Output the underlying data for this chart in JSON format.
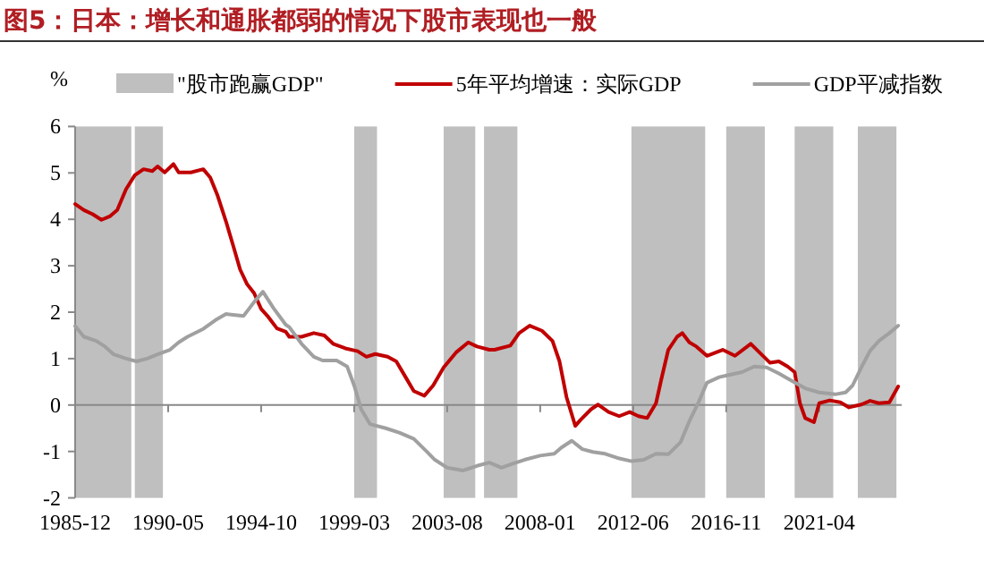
{
  "chart_data": {
    "type": "line",
    "title": "图5：日本：增长和通胀都弱的情况下股市表现也一般",
    "ylabel": "%",
    "xlim": [
      "1985-12",
      "2025-03"
    ],
    "xticks": [
      {
        "value": "1985-12",
        "label": "1985-12"
      },
      {
        "value": "1990-05",
        "label": "1990-05"
      },
      {
        "value": "1994-10",
        "label": "1994-10"
      },
      {
        "value": "1999-03",
        "label": "1999-03"
      },
      {
        "value": "2003-08",
        "label": "2003-08"
      },
      {
        "value": "2008-01",
        "label": "2008-01"
      },
      {
        "value": "2012-06",
        "label": "2012-06"
      },
      {
        "value": "2016-11",
        "label": "2016-11"
      },
      {
        "value": "2021-04",
        "label": "2021-04"
      }
    ],
    "ylim": [
      -2,
      6
    ],
    "yticks": [
      -2,
      -1,
      0,
      1,
      2,
      3,
      4,
      5,
      6
    ],
    "legend": "top",
    "bands": [
      {
        "axis": "x",
        "from": "1985-12",
        "to": "1988-08",
        "label": "\"股市跑赢GDP\"",
        "color": "#bfbfbf"
      },
      {
        "axis": "x",
        "from": "1988-10",
        "to": "1990-02",
        "color": "#bfbfbf"
      },
      {
        "axis": "x",
        "from": "1999-03",
        "to": "2000-04",
        "color": "#bfbfbf"
      },
      {
        "axis": "x",
        "from": "2003-06",
        "to": "2004-12",
        "color": "#bfbfbf"
      },
      {
        "axis": "x",
        "from": "2005-05",
        "to": "2006-12",
        "color": "#bfbfbf"
      },
      {
        "axis": "x",
        "from": "2012-05",
        "to": "2015-11",
        "color": "#bfbfbf"
      },
      {
        "axis": "x",
        "from": "2016-11",
        "to": "2018-09",
        "color": "#bfbfbf"
      },
      {
        "axis": "x",
        "from": "2020-02",
        "to": "2021-12",
        "color": "#bfbfbf"
      },
      {
        "axis": "x",
        "from": "2023-02",
        "to": "2024-12",
        "color": "#bfbfbf"
      }
    ],
    "series": [
      {
        "name": "5年平均增速：实际GDP",
        "color": "#c00000",
        "x": [
          "1985-12",
          "1986-05",
          "1986-10",
          "1987-03",
          "1987-08",
          "1987-12",
          "1988-05",
          "1988-10",
          "1989-03",
          "1989-08",
          "1989-11",
          "1990-03",
          "1990-08",
          "1990-11",
          "1991-06",
          "1992-01",
          "1992-05",
          "1992-09",
          "1993-02",
          "1993-06",
          "1993-10",
          "1994-02",
          "1994-06",
          "1994-10",
          "1995-02",
          "1995-07",
          "1995-12",
          "1996-02",
          "1996-09",
          "1997-04",
          "1997-10",
          "1998-03",
          "1998-10",
          "1999-05",
          "1999-10",
          "2000-03",
          "2000-10",
          "2001-03",
          "2001-08",
          "2002-01",
          "2002-07",
          "2002-12",
          "2003-06",
          "2004-01",
          "2004-08",
          "2005-01",
          "2005-08",
          "2005-11",
          "2006-08",
          "2007-01",
          "2007-07",
          "2008-02",
          "2008-08",
          "2008-12",
          "2009-04",
          "2009-09",
          "2009-12",
          "2010-06",
          "2010-10",
          "2011-04",
          "2011-10",
          "2012-04",
          "2012-09",
          "2013-02",
          "2013-07",
          "2013-10",
          "2014-02",
          "2014-07",
          "2014-10",
          "2015-02",
          "2015-06",
          "2015-12",
          "2016-09",
          "2017-04",
          "2018-01",
          "2018-06",
          "2018-12",
          "2019-05",
          "2019-10",
          "2020-02",
          "2020-05",
          "2020-08",
          "2021-01",
          "2021-04",
          "2021-10",
          "2022-04",
          "2022-09",
          "2023-04",
          "2023-09",
          "2024-02",
          "2024-08",
          "2025-01"
        ],
        "values": [
          4.33,
          4.2,
          4.11,
          3.99,
          4.07,
          4.2,
          4.65,
          4.95,
          5.08,
          5.04,
          5.14,
          5.01,
          5.19,
          5.01,
          5.01,
          5.08,
          4.9,
          4.53,
          3.95,
          3.44,
          2.92,
          2.6,
          2.41,
          2.07,
          1.9,
          1.65,
          1.58,
          1.47,
          1.47,
          1.55,
          1.5,
          1.32,
          1.22,
          1.16,
          1.04,
          1.1,
          1.04,
          0.94,
          0.62,
          0.3,
          0.2,
          0.42,
          0.81,
          1.13,
          1.35,
          1.26,
          1.19,
          1.19,
          1.28,
          1.55,
          1.71,
          1.6,
          1.38,
          0.94,
          0.17,
          -0.45,
          -0.32,
          -0.09,
          0.01,
          -0.15,
          -0.24,
          -0.15,
          -0.24,
          -0.28,
          0.04,
          0.55,
          1.19,
          1.47,
          1.55,
          1.35,
          1.26,
          1.06,
          1.19,
          1.06,
          1.32,
          1.13,
          0.91,
          0.94,
          0.83,
          0.71,
          0.04,
          -0.28,
          -0.37,
          0.04,
          0.1,
          0.06,
          -0.05,
          0.01,
          0.09,
          0.04,
          0.06,
          0.4
        ]
      },
      {
        "name": "GDP平减指数",
        "color": "#a0a0a0",
        "x": [
          "1985-12",
          "1986-05",
          "1986-12",
          "1987-05",
          "1987-10",
          "1988-05",
          "1988-11",
          "1989-05",
          "1989-11",
          "1990-06",
          "1990-11",
          "1991-04",
          "1992-01",
          "1992-08",
          "1993-02",
          "1993-12",
          "1994-06",
          "1994-11",
          "1995-05",
          "1995-12",
          "1996-02",
          "1996-09",
          "1997-04",
          "1997-09",
          "1998-05",
          "1998-11",
          "1999-03",
          "1999-07",
          "1999-12",
          "2000-09",
          "2001-05",
          "2002-01",
          "2002-08",
          "2003-01",
          "2003-08",
          "2004-05",
          "2005-01",
          "2005-08",
          "2006-03",
          "2006-09",
          "2007-04",
          "2008-01",
          "2008-09",
          "2009-01",
          "2009-07",
          "2010-01",
          "2010-07",
          "2011-02",
          "2011-09",
          "2012-05",
          "2012-12",
          "2013-07",
          "2014-02",
          "2014-09",
          "2015-02",
          "2015-07",
          "2015-12",
          "2016-07",
          "2017-01",
          "2017-08",
          "2018-03",
          "2018-10",
          "2019-05",
          "2019-11",
          "2020-08",
          "2021-04",
          "2022-01",
          "2022-07",
          "2022-11",
          "2023-04",
          "2023-09",
          "2024-02",
          "2024-08",
          "2025-01"
        ],
        "values": [
          1.7,
          1.47,
          1.38,
          1.26,
          1.09,
          1.0,
          0.94,
          1.0,
          1.09,
          1.19,
          1.35,
          1.47,
          1.64,
          1.83,
          1.96,
          1.92,
          2.22,
          2.44,
          2.09,
          1.73,
          1.68,
          1.32,
          1.04,
          0.96,
          0.96,
          0.83,
          0.42,
          -0.09,
          -0.41,
          -0.5,
          -0.6,
          -0.73,
          -0.99,
          -1.18,
          -1.35,
          -1.41,
          -1.31,
          -1.24,
          -1.35,
          -1.27,
          -1.18,
          -1.09,
          -1.05,
          -0.92,
          -0.77,
          -0.95,
          -1.01,
          -1.05,
          -1.14,
          -1.21,
          -1.18,
          -1.05,
          -1.06,
          -0.8,
          -0.35,
          0.04,
          0.48,
          0.6,
          0.65,
          0.71,
          0.83,
          0.81,
          0.68,
          0.55,
          0.36,
          0.27,
          0.23,
          0.27,
          0.42,
          0.81,
          1.17,
          1.38,
          1.55,
          1.71
        ]
      }
    ]
  }
}
